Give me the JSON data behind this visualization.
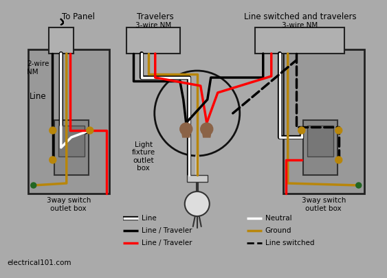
{
  "bg_color": "#aaaaaa",
  "wire_colors": {
    "black": "#000000",
    "white": "#ffffff",
    "red": "#ff0000",
    "ground": "#b8860b",
    "green": "#226622"
  },
  "labels": {
    "to_panel": "To Panel",
    "travelers": "Travelers",
    "line_switched_travelers": "Line switched and travelers",
    "two_wire_nm": "2-wire\nNM",
    "three_wire_nm_left": "3-wire NM",
    "three_wire_nm_right": "3-wire NM",
    "line_label": "Line",
    "switch_box_left": "3way switch\noutlet box",
    "switch_box_right": "3way switch\noutlet box",
    "light_fixture": "Light\nfixture\noutlet\nbox",
    "website": "electrical101.com"
  },
  "legend_left": [
    {
      "label": "Line",
      "color": "#ffffff",
      "outline": true,
      "style": "solid",
      "lw": 2.5
    },
    {
      "label": "Line / Traveler",
      "color": "#000000",
      "outline": false,
      "style": "solid",
      "lw": 2.5
    },
    {
      "label": "Line / Traveler",
      "color": "#ff0000",
      "outline": false,
      "style": "solid",
      "lw": 2.5
    }
  ],
  "legend_right": [
    {
      "label": "Neutral",
      "color": "#ffffff",
      "outline": false,
      "style": "solid",
      "lw": 2.5
    },
    {
      "label": "Ground",
      "color": "#b8860b",
      "outline": false,
      "style": "solid",
      "lw": 2.5
    },
    {
      "label": "Line switched",
      "color": "#000000",
      "outline": false,
      "style": "dashed",
      "lw": 2.0
    }
  ]
}
